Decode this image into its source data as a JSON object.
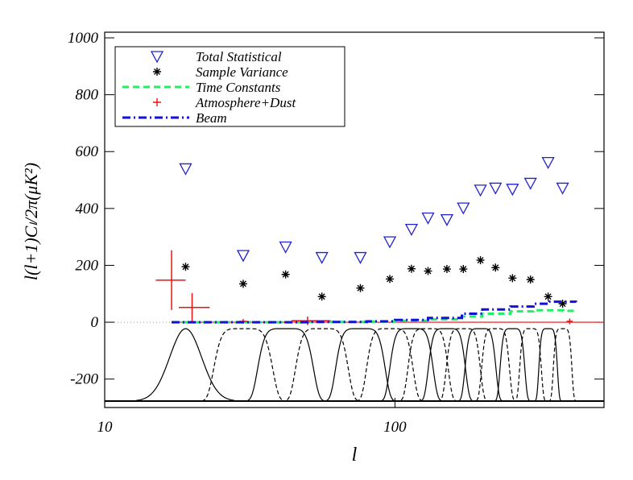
{
  "chart_data": {
    "type": "scatter",
    "x_label": "l",
    "y_label": "l(l+1)Cₗ/2π(μK²)",
    "xlim": [
      10,
      525
    ],
    "ylim": [
      -300,
      1000
    ],
    "x_log": true,
    "xticks": [
      10,
      100
    ],
    "yticks": [
      -200,
      0,
      200,
      400,
      600,
      800,
      1000
    ],
    "series": [
      {
        "name": "Total Statistical",
        "color": "#2020d0",
        "marker": "triangle-down",
        "x": [
          19,
          30,
          42,
          56,
          76,
          96,
          114,
          130,
          151,
          172,
          197,
          222,
          254,
          293,
          337,
          378
        ],
        "values": [
          540,
          235,
          265,
          228,
          228,
          283,
          327,
          367,
          361,
          402,
          465,
          472,
          468,
          489,
          562,
          472
        ]
      },
      {
        "name": "Sample Variance",
        "color": "#000000",
        "marker": "asterisk",
        "x": [
          19,
          30,
          42,
          56,
          76,
          96,
          114,
          130,
          151,
          172,
          197,
          222,
          254,
          293,
          337,
          378
        ],
        "values": [
          195,
          135,
          168,
          90,
          120,
          152,
          188,
          180,
          187,
          187,
          218,
          192,
          155,
          150,
          90,
          65
        ]
      },
      {
        "name": "Time Constants",
        "color": "#22ee66",
        "marker": "dashed-line",
        "x": [
          17,
          30,
          50,
          80,
          100,
          130,
          170,
          200,
          250,
          300,
          340,
          380,
          420
        ],
        "values": [
          0,
          0,
          1,
          2,
          5,
          10,
          20,
          30,
          38,
          42,
          42,
          40,
          38
        ]
      },
      {
        "name": "Atmosphere+Dust",
        "color": "#ee1111",
        "marker": "errorbar",
        "x": [
          17,
          20,
          30,
          50,
          400
        ],
        "values": [
          148,
          52,
          3,
          5,
          3
        ],
        "errors": [
          105,
          50,
          8,
          15,
          10
        ],
        "x_low": [
          15,
          18,
          29,
          44,
          390
        ],
        "x_high": [
          19,
          23,
          31,
          60,
          410
        ]
      },
      {
        "name": "Beam",
        "color": "#1111dd",
        "marker": "dashdot-line",
        "x": [
          17,
          30,
          50,
          80,
          100,
          130,
          170,
          200,
          250,
          300,
          340,
          380,
          420
        ],
        "values": [
          0,
          0,
          1,
          3,
          8,
          15,
          30,
          45,
          55,
          65,
          72,
          72,
          70
        ]
      }
    ]
  }
}
